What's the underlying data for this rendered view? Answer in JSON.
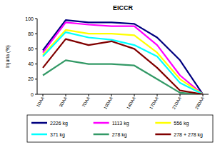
{
  "chart_data": {
    "type": "line",
    "title": "EICCR",
    "y_label": "Injúria (%)",
    "categories": [
      "1DAA",
      "3DAA",
      "7DAA",
      "10DAA",
      "14DAA",
      "17DAA",
      "21DAA",
      "28DAA"
    ],
    "series": [
      {
        "name": "2226 kg",
        "color": "#000080",
        "values": [
          58,
          98,
          95,
          95,
          93,
          75,
          45,
          0
        ]
      },
      {
        "name": "1113 kg",
        "color": "#ff00ff",
        "values": [
          55,
          95,
          92,
          90,
          90,
          65,
          25,
          0
        ]
      },
      {
        "name": "556 kg",
        "color": "#ffff00",
        "values": [
          52,
          85,
          80,
          80,
          78,
          55,
          20,
          0
        ]
      },
      {
        "name": "371 kg",
        "color": "#00ffff",
        "values": [
          50,
          82,
          75,
          72,
          65,
          50,
          15,
          0
        ]
      },
      {
        "name": "278 kg",
        "color": "#339966",
        "values": [
          25,
          45,
          40,
          40,
          38,
          20,
          2,
          0
        ]
      },
      {
        "name": "278 + 278 kg",
        "color": "#800000",
        "values": [
          35,
          73,
          65,
          70,
          60,
          35,
          5,
          0
        ]
      }
    ],
    "ylim": [
      0,
      100
    ],
    "yticks": [
      0,
      20,
      40,
      60,
      80,
      100
    ],
    "grid": false,
    "legend": "bottom"
  }
}
